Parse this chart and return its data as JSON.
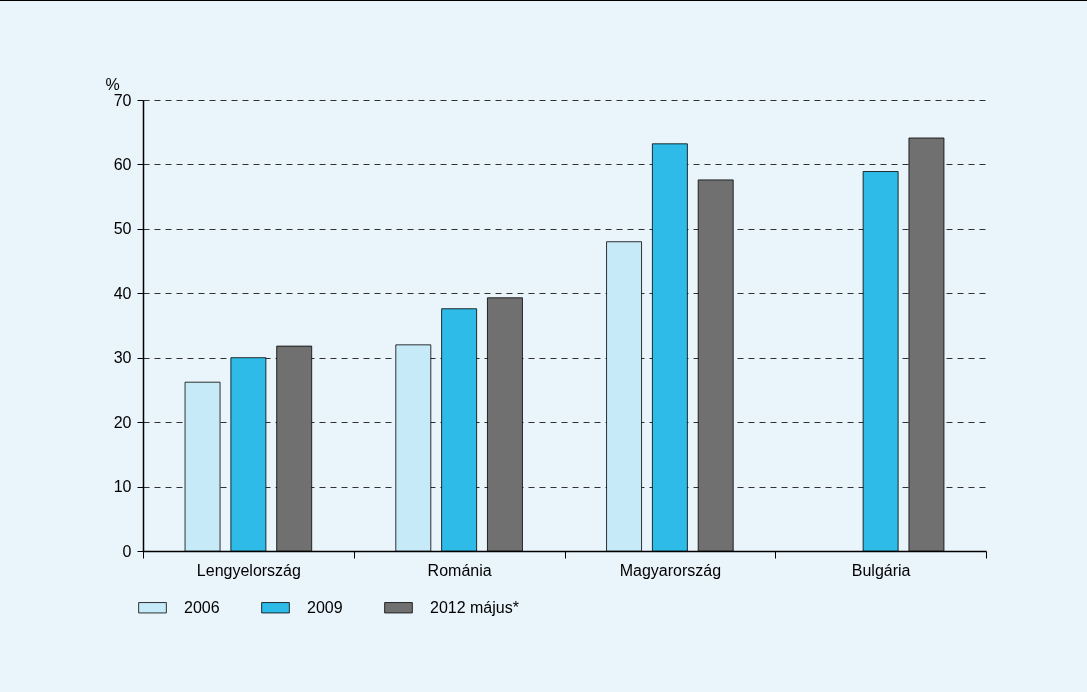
{
  "chart_data": {
    "type": "bar",
    "ylabel": "%",
    "categories": [
      "Lengyelország",
      "Románia",
      "Magyarország",
      "Bulgária"
    ],
    "series": [
      {
        "name": "2006",
        "color": "#c6eaf8",
        "values": [
          26.2,
          32.0,
          48.0,
          null
        ]
      },
      {
        "name": "2009",
        "color": "#2fbbe8",
        "values": [
          30.0,
          37.6,
          63.2,
          58.9
        ]
      },
      {
        "name": "2012 május*",
        "color": "#707070",
        "values": [
          31.8,
          39.3,
          57.6,
          64.1
        ]
      }
    ],
    "ylim": [
      0,
      70
    ],
    "yticks": [
      0,
      10,
      20,
      30,
      40,
      50,
      60,
      70
    ],
    "grid": "y",
    "legend": "bottom"
  }
}
